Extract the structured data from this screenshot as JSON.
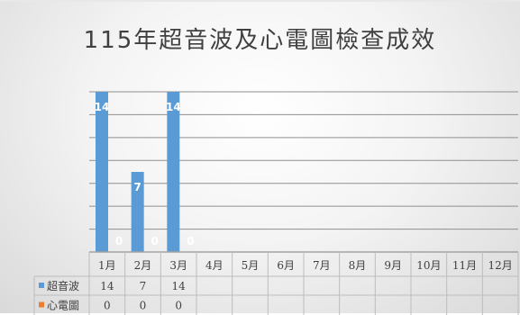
{
  "chart_data": {
    "type": "bar",
    "title": "115年超音波及心電圖檢查成效",
    "categories": [
      "1月",
      "2月",
      "3月",
      "4月",
      "5月",
      "6月",
      "7月",
      "8月",
      "9月",
      "10月",
      "11月",
      "12月"
    ],
    "series": [
      {
        "name": "超音波",
        "values": [
          14,
          7,
          14,
          null,
          null,
          null,
          null,
          null,
          null,
          null,
          null,
          null
        ],
        "color": "#5b9bd5"
      },
      {
        "name": "心電圖",
        "values": [
          0,
          0,
          0,
          null,
          null,
          null,
          null,
          null,
          null,
          null,
          null,
          null
        ],
        "color": "#ed7d31"
      }
    ],
    "ylim": [
      0,
      14
    ],
    "grid": true,
    "legend": "data-table"
  }
}
